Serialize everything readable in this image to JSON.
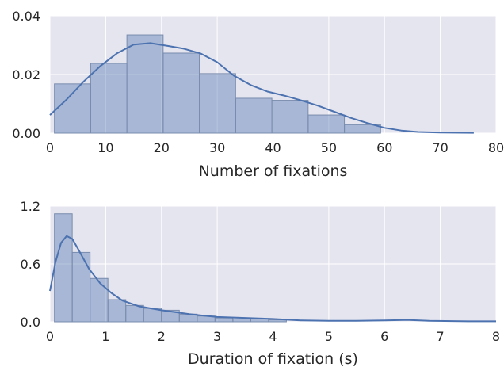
{
  "chart_data": [
    {
      "type": "histogram",
      "xlabel": "Number of fixations",
      "ylabel": "",
      "xlim": [
        0,
        80
      ],
      "ylim": [
        0,
        0.04
      ],
      "xticks": [
        0,
        10,
        20,
        30,
        40,
        50,
        60,
        70,
        80
      ],
      "xtick_labels": [
        "0",
        "10",
        "20",
        "30",
        "40",
        "50",
        "60",
        "70",
        "80"
      ],
      "yticks": [
        0,
        0.02,
        0.04
      ],
      "ytick_labels": [
        "0.00",
        "0.02",
        "0.04"
      ],
      "grid": true,
      "bin_edges": [
        0.8,
        7.3,
        13.8,
        20.3,
        26.8,
        33.3,
        39.8,
        46.3,
        52.8,
        59.3
      ],
      "bars": [
        0.0168,
        0.0238,
        0.0335,
        0.0273,
        0.0203,
        0.0119,
        0.0112,
        0.0062,
        0.0029
      ],
      "kde": [
        [
          0,
          0.0062
        ],
        [
          3,
          0.0115
        ],
        [
          6,
          0.0175
        ],
        [
          9,
          0.0228
        ],
        [
          12,
          0.0272
        ],
        [
          15,
          0.0302
        ],
        [
          18,
          0.0307
        ],
        [
          21,
          0.0298
        ],
        [
          24,
          0.0288
        ],
        [
          27,
          0.0272
        ],
        [
          30,
          0.0242
        ],
        [
          33,
          0.0196
        ],
        [
          36,
          0.0164
        ],
        [
          39,
          0.0142
        ],
        [
          42,
          0.0128
        ],
        [
          45,
          0.0112
        ],
        [
          48,
          0.0094
        ],
        [
          51,
          0.0073
        ],
        [
          54,
          0.0052
        ],
        [
          57,
          0.0034
        ],
        [
          60,
          0.0018
        ],
        [
          63,
          0.0009
        ],
        [
          66,
          0.0004
        ],
        [
          70,
          0.0002
        ],
        [
          76,
          0.0001
        ]
      ]
    },
    {
      "type": "histogram",
      "xlabel": "Duration of fixation (s)",
      "ylabel": "",
      "xlim": [
        0,
        8
      ],
      "ylim": [
        0,
        1.2
      ],
      "xticks": [
        0,
        1,
        2,
        3,
        4,
        5,
        6,
        7,
        8
      ],
      "xtick_labels": [
        "0",
        "1",
        "2",
        "3",
        "4",
        "5",
        "6",
        "7",
        "8"
      ],
      "yticks": [
        0,
        0.6,
        1.2
      ],
      "ytick_labels": [
        "0.0",
        "0.6",
        "1.2"
      ],
      "grid": true,
      "bin_edges": [
        0.08,
        0.4,
        0.72,
        1.04,
        1.36,
        1.68,
        2.0,
        2.32,
        2.64,
        2.96,
        3.28,
        3.6,
        3.92,
        4.24
      ],
      "bars": [
        1.12,
        0.72,
        0.45,
        0.23,
        0.17,
        0.14,
        0.12,
        0.08,
        0.06,
        0.04,
        0.03,
        0.03,
        0.02
      ],
      "kde": [
        [
          0,
          0.32
        ],
        [
          0.1,
          0.62
        ],
        [
          0.2,
          0.82
        ],
        [
          0.3,
          0.89
        ],
        [
          0.4,
          0.86
        ],
        [
          0.5,
          0.76
        ],
        [
          0.7,
          0.55
        ],
        [
          0.9,
          0.4
        ],
        [
          1.1,
          0.3
        ],
        [
          1.3,
          0.22
        ],
        [
          1.6,
          0.16
        ],
        [
          2.0,
          0.12
        ],
        [
          2.5,
          0.08
        ],
        [
          3.0,
          0.05
        ],
        [
          3.5,
          0.04
        ],
        [
          4.0,
          0.03
        ],
        [
          4.5,
          0.015
        ],
        [
          5.0,
          0.01
        ],
        [
          5.5,
          0.01
        ],
        [
          6.0,
          0.015
        ],
        [
          6.4,
          0.02
        ],
        [
          6.8,
          0.01
        ],
        [
          7.5,
          0.005
        ],
        [
          8.0,
          0.005
        ]
      ]
    }
  ],
  "colors": {
    "panel_background": "#e5e5ef",
    "grid": "#ffffff",
    "bar_fill": "#4c72b0",
    "bar_stroke": "#7a8cad",
    "kde_line": "#4c72b0",
    "text": "#262626"
  }
}
